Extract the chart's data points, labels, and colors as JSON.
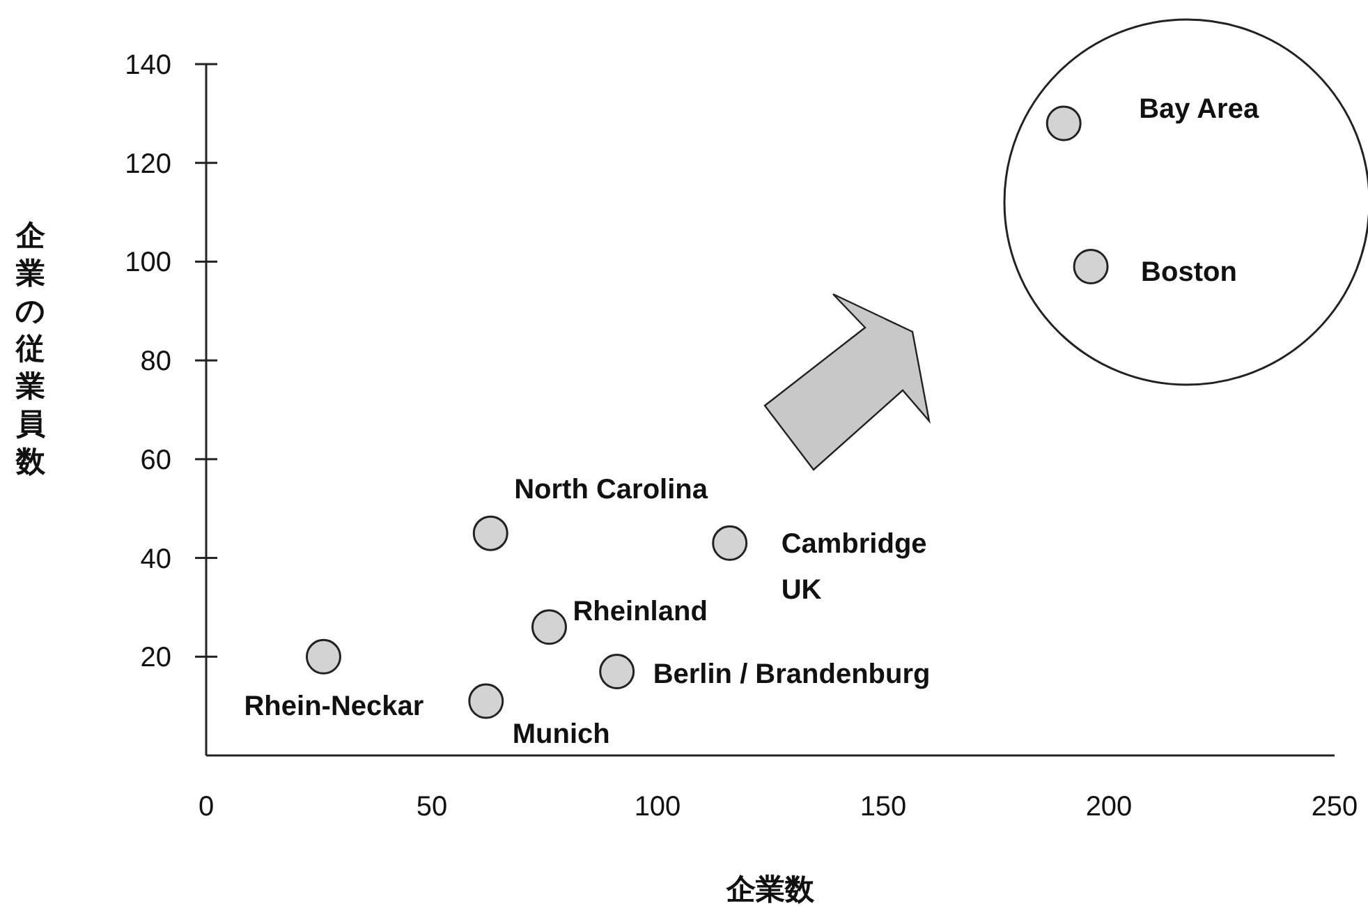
{
  "chart_data": {
    "type": "scatter",
    "xlabel": "企業数",
    "ylabel": "企業の従業員数",
    "x": [
      26,
      62,
      63,
      76,
      91,
      116,
      190,
      196
    ],
    "series": [
      {
        "color": "#d3d3d3",
        "values": [
          20,
          11,
          45,
          26,
          17,
          43,
          128,
          99
        ]
      }
    ],
    "xlim": [
      0,
      250
    ],
    "ylim": [
      0,
      140
    ],
    "xticks": [
      0,
      50,
      100,
      150,
      200,
      250
    ],
    "yticks": [
      20,
      40,
      60,
      80,
      100,
      120,
      140
    ],
    "grid": false,
    "marker": "circle",
    "annotations": [
      {
        "text": "Rhein-Neckar",
        "x": 26,
        "y": 20
      },
      {
        "text": "Munich",
        "x": 62,
        "y": 11
      },
      {
        "text": "North Carolina",
        "x": 63,
        "y": 45
      },
      {
        "text": "Rheinland",
        "x": 76,
        "y": 26
      },
      {
        "text": "Berlin / Brandenburg",
        "x": 91,
        "y": 17
      },
      {
        "text": "Cambridge\nUK",
        "x": 116,
        "y": 43
      },
      {
        "text": "Bay Area",
        "x": 190,
        "y": 128
      },
      {
        "text": "Boston",
        "x": 196,
        "y": 99
      }
    ]
  }
}
